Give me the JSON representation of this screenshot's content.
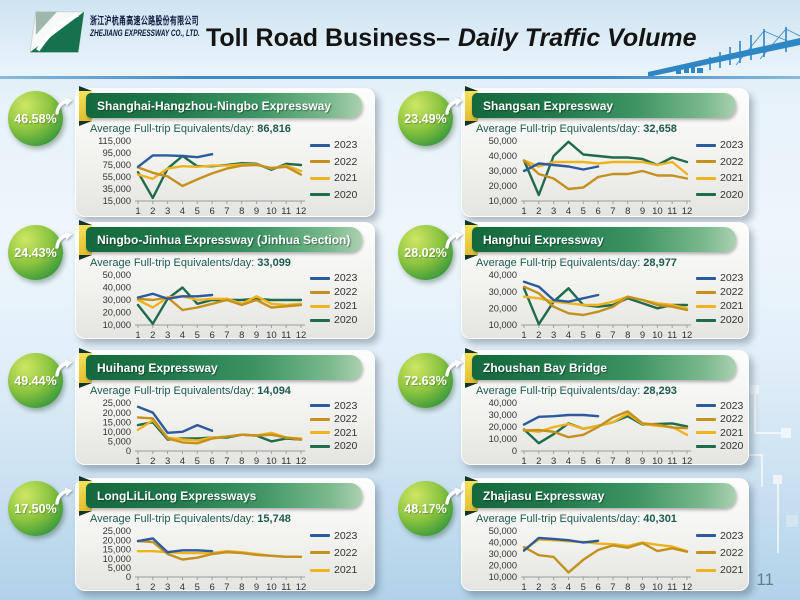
{
  "header": {
    "logo_cn": "浙江沪杭甬高速公路股份有限公司",
    "logo_en": "ZHEJIANG EXPRESSWAY CO., LTD.",
    "title_main": "Toll Road Business–",
    "title_em": "Daily Traffic Volume"
  },
  "page_number": "11",
  "avg_label": "Average Full-trip Equivalents/day:",
  "colors": {
    "2023": "#2B5B9E",
    "2022": "#C4901E",
    "2021": "#EFB31E",
    "2020": "#1F6B4C"
  },
  "chart_data": [
    {
      "type": "line",
      "title": "Shanghai-Hangzhou-Ningbo Expressway",
      "badge": "46.58%",
      "badge_direction": "up",
      "avg_value": "86,816",
      "x": [
        1,
        2,
        3,
        4,
        5,
        6,
        7,
        8,
        9,
        10,
        11,
        12
      ],
      "ylim": [
        15000,
        115000
      ],
      "ystep": 20000,
      "legend_position": "right",
      "grid": false,
      "series": [
        {
          "name": "2023",
          "values": [
            72000,
            91000,
            91000,
            90000,
            88000,
            93000
          ]
        },
        {
          "name": "2022",
          "values": [
            71000,
            62000,
            56000,
            40000,
            51000,
            61000,
            69000,
            74000,
            75000,
            70000,
            72000,
            59000
          ]
        },
        {
          "name": "2021",
          "values": [
            59000,
            52000,
            69000,
            73000,
            72000,
            74000,
            74000,
            76000,
            76000,
            69000,
            74000,
            65000
          ]
        },
        {
          "name": "2020",
          "values": [
            63000,
            20000,
            69000,
            90000,
            73000,
            73000,
            75000,
            78000,
            77000,
            67000,
            77000,
            75000
          ]
        }
      ]
    },
    {
      "type": "line",
      "title": "Shangsan Expressway",
      "badge": "23.49%",
      "badge_direction": "up",
      "avg_value": "32,658",
      "x": [
        1,
        2,
        3,
        4,
        5,
        6,
        7,
        8,
        9,
        10,
        11,
        12
      ],
      "ylim": [
        10000,
        50000
      ],
      "ystep": 10000,
      "legend_position": "right",
      "grid": false,
      "series": [
        {
          "name": "2023",
          "values": [
            30000,
            35000,
            34000,
            33000,
            31000,
            33000
          ]
        },
        {
          "name": "2022",
          "values": [
            37000,
            28000,
            25000,
            18000,
            19000,
            26000,
            28000,
            28000,
            30000,
            27000,
            27000,
            25000
          ]
        },
        {
          "name": "2021",
          "values": [
            37000,
            33000,
            36000,
            36000,
            36000,
            35000,
            36000,
            36000,
            36000,
            34000,
            36000,
            28000
          ]
        },
        {
          "name": "2020",
          "values": [
            37000,
            14000,
            40000,
            49500,
            41000,
            40000,
            39000,
            39000,
            38000,
            34000,
            39000,
            36000
          ]
        }
      ]
    },
    {
      "type": "line",
      "title": "Ningbo-Jinhua Expressway (Jinhua Section)",
      "badge": "24.43%",
      "badge_direction": "up",
      "avg_value": "33,099",
      "x": [
        1,
        2,
        3,
        4,
        5,
        6,
        7,
        8,
        9,
        10,
        11,
        12
      ],
      "ylim": [
        10000,
        50000
      ],
      "ystep": 10000,
      "legend_position": "right",
      "grid": false,
      "series": [
        {
          "name": "2023",
          "values": [
            32000,
            35000,
            31000,
            33000,
            33000,
            34000
          ]
        },
        {
          "name": "2022",
          "values": [
            31000,
            30000,
            32000,
            22000,
            24000,
            27000,
            30000,
            26000,
            30000,
            24000,
            25000,
            26000
          ]
        },
        {
          "name": "2021",
          "values": [
            30000,
            24000,
            32000,
            33000,
            30000,
            31000,
            31000,
            27000,
            33000,
            27000,
            26000,
            27000
          ]
        },
        {
          "name": "2020",
          "values": [
            26000,
            11000,
            31000,
            40000,
            27000,
            30000,
            30000,
            30000,
            31000,
            30000,
            30000,
            30000
          ]
        }
      ]
    },
    {
      "type": "line",
      "title": "Hanghui Expressway",
      "badge": "28.02%",
      "badge_direction": "up",
      "avg_value": "28,977",
      "x": [
        1,
        2,
        3,
        4,
        5,
        6,
        7,
        8,
        9,
        10,
        11,
        12
      ],
      "ylim": [
        10000,
        40000
      ],
      "ystep": 10000,
      "legend_position": "right",
      "grid": false,
      "series": [
        {
          "name": "2023",
          "values": [
            36000,
            33000,
            25000,
            24000,
            26000,
            28000
          ]
        },
        {
          "name": "2022",
          "values": [
            33000,
            29000,
            21000,
            17000,
            16000,
            18000,
            21000,
            27000,
            25000,
            22000,
            21000,
            19000
          ]
        },
        {
          "name": "2021",
          "values": [
            27000,
            26000,
            24000,
            23000,
            22000,
            22000,
            24000,
            27000,
            25000,
            23000,
            22000,
            20000
          ]
        },
        {
          "name": "2020",
          "values": [
            32000,
            10500,
            24000,
            32000,
            22000,
            21000,
            22000,
            26000,
            23000,
            20000,
            22000,
            22000
          ]
        }
      ]
    },
    {
      "type": "line",
      "title": "Huihang Expressway",
      "badge": "49.44%",
      "badge_direction": "up",
      "avg_value": "14,094",
      "x": [
        1,
        2,
        3,
        4,
        5,
        6,
        7,
        8,
        9,
        10,
        11,
        12
      ],
      "ylim": [
        0,
        25000
      ],
      "ystep": 5000,
      "legend_position": "right",
      "grid": false,
      "series": [
        {
          "name": "2023",
          "values": [
            23000,
            20000,
            9500,
            10000,
            13500,
            10500
          ]
        },
        {
          "name": "2022",
          "values": [
            17500,
            17000,
            6500,
            4500,
            4000,
            6500,
            7500,
            8500,
            8000,
            8500,
            7000,
            6000
          ]
        },
        {
          "name": "2021",
          "values": [
            11000,
            16000,
            7000,
            6000,
            5500,
            7000,
            7500,
            8500,
            8000,
            9500,
            7000,
            6500
          ]
        },
        {
          "name": "2020",
          "values": [
            13500,
            15000,
            6000,
            6500,
            6500,
            7000,
            7000,
            8500,
            8000,
            5000,
            6500,
            6000
          ]
        }
      ]
    },
    {
      "type": "line",
      "title": "Zhoushan Bay Bridge",
      "badge": "72.63%",
      "badge_direction": "up",
      "avg_value": "28,293",
      "x": [
        1,
        2,
        3,
        4,
        5,
        6,
        7,
        8,
        9,
        10,
        11,
        12
      ],
      "ylim": [
        0,
        40000
      ],
      "ystep": 10000,
      "legend_position": "right",
      "grid": false,
      "series": [
        {
          "name": "2023",
          "values": [
            22000,
            28500,
            29000,
            30000,
            30000,
            29000
          ]
        },
        {
          "name": "2022",
          "values": [
            17000,
            17500,
            16000,
            11500,
            13500,
            20000,
            28000,
            33000,
            23000,
            22000,
            19500,
            19000
          ]
        },
        {
          "name": "2021",
          "values": [
            17500,
            16000,
            20000,
            22500,
            18500,
            21000,
            24000,
            31000,
            22500,
            21000,
            20000,
            13500
          ]
        },
        {
          "name": "2020",
          "values": [
            18000,
            6500,
            14000,
            23000,
            18500,
            21000,
            24000,
            29000,
            22000,
            22500,
            23000,
            20500
          ]
        }
      ]
    },
    {
      "type": "line",
      "title": "LongLiLiLong Expressways",
      "badge": "17.50%",
      "badge_direction": "up",
      "avg_value": "15,748",
      "x": [
        1,
        2,
        3,
        4,
        5,
        6,
        7,
        8,
        9,
        10,
        11,
        12
      ],
      "ylim": [
        0,
        25000
      ],
      "ystep": 5000,
      "legend_position": "right",
      "grid": false,
      "series": [
        {
          "name": "2023",
          "values": [
            19500,
            21000,
            13500,
            14500,
            14500,
            14000
          ]
        },
        {
          "name": "2022",
          "values": [
            19500,
            19000,
            12500,
            9500,
            10500,
            12500,
            13500,
            13000,
            12000,
            11500,
            11000,
            11000
          ]
        },
        {
          "name": "2021",
          "values": [
            14000,
            14000,
            13500,
            13000,
            13000,
            13000,
            14000,
            13500,
            12500,
            11500,
            11000,
            11000
          ]
        }
      ]
    },
    {
      "type": "line",
      "title": "Zhajiasu Expressway",
      "badge": "48.17%",
      "badge_direction": "up",
      "avg_value": "40,301",
      "x": [
        1,
        2,
        3,
        4,
        5,
        6,
        7,
        8,
        9,
        10,
        11,
        12
      ],
      "ylim": [
        10000,
        50000
      ],
      "ystep": 10000,
      "legend_position": "right",
      "grid": false,
      "series": [
        {
          "name": "2023",
          "values": [
            33000,
            44000,
            43000,
            42000,
            40000,
            41500
          ]
        },
        {
          "name": "2022",
          "values": [
            36000,
            29000,
            27500,
            14000,
            25000,
            33500,
            37500,
            35500,
            39500,
            32500,
            35000,
            32000
          ]
        },
        {
          "name": "2021",
          "values": [
            34000,
            42500,
            42000,
            41000,
            40500,
            39000,
            38500,
            37000,
            40000,
            38000,
            36500,
            32500
          ]
        }
      ]
    }
  ]
}
